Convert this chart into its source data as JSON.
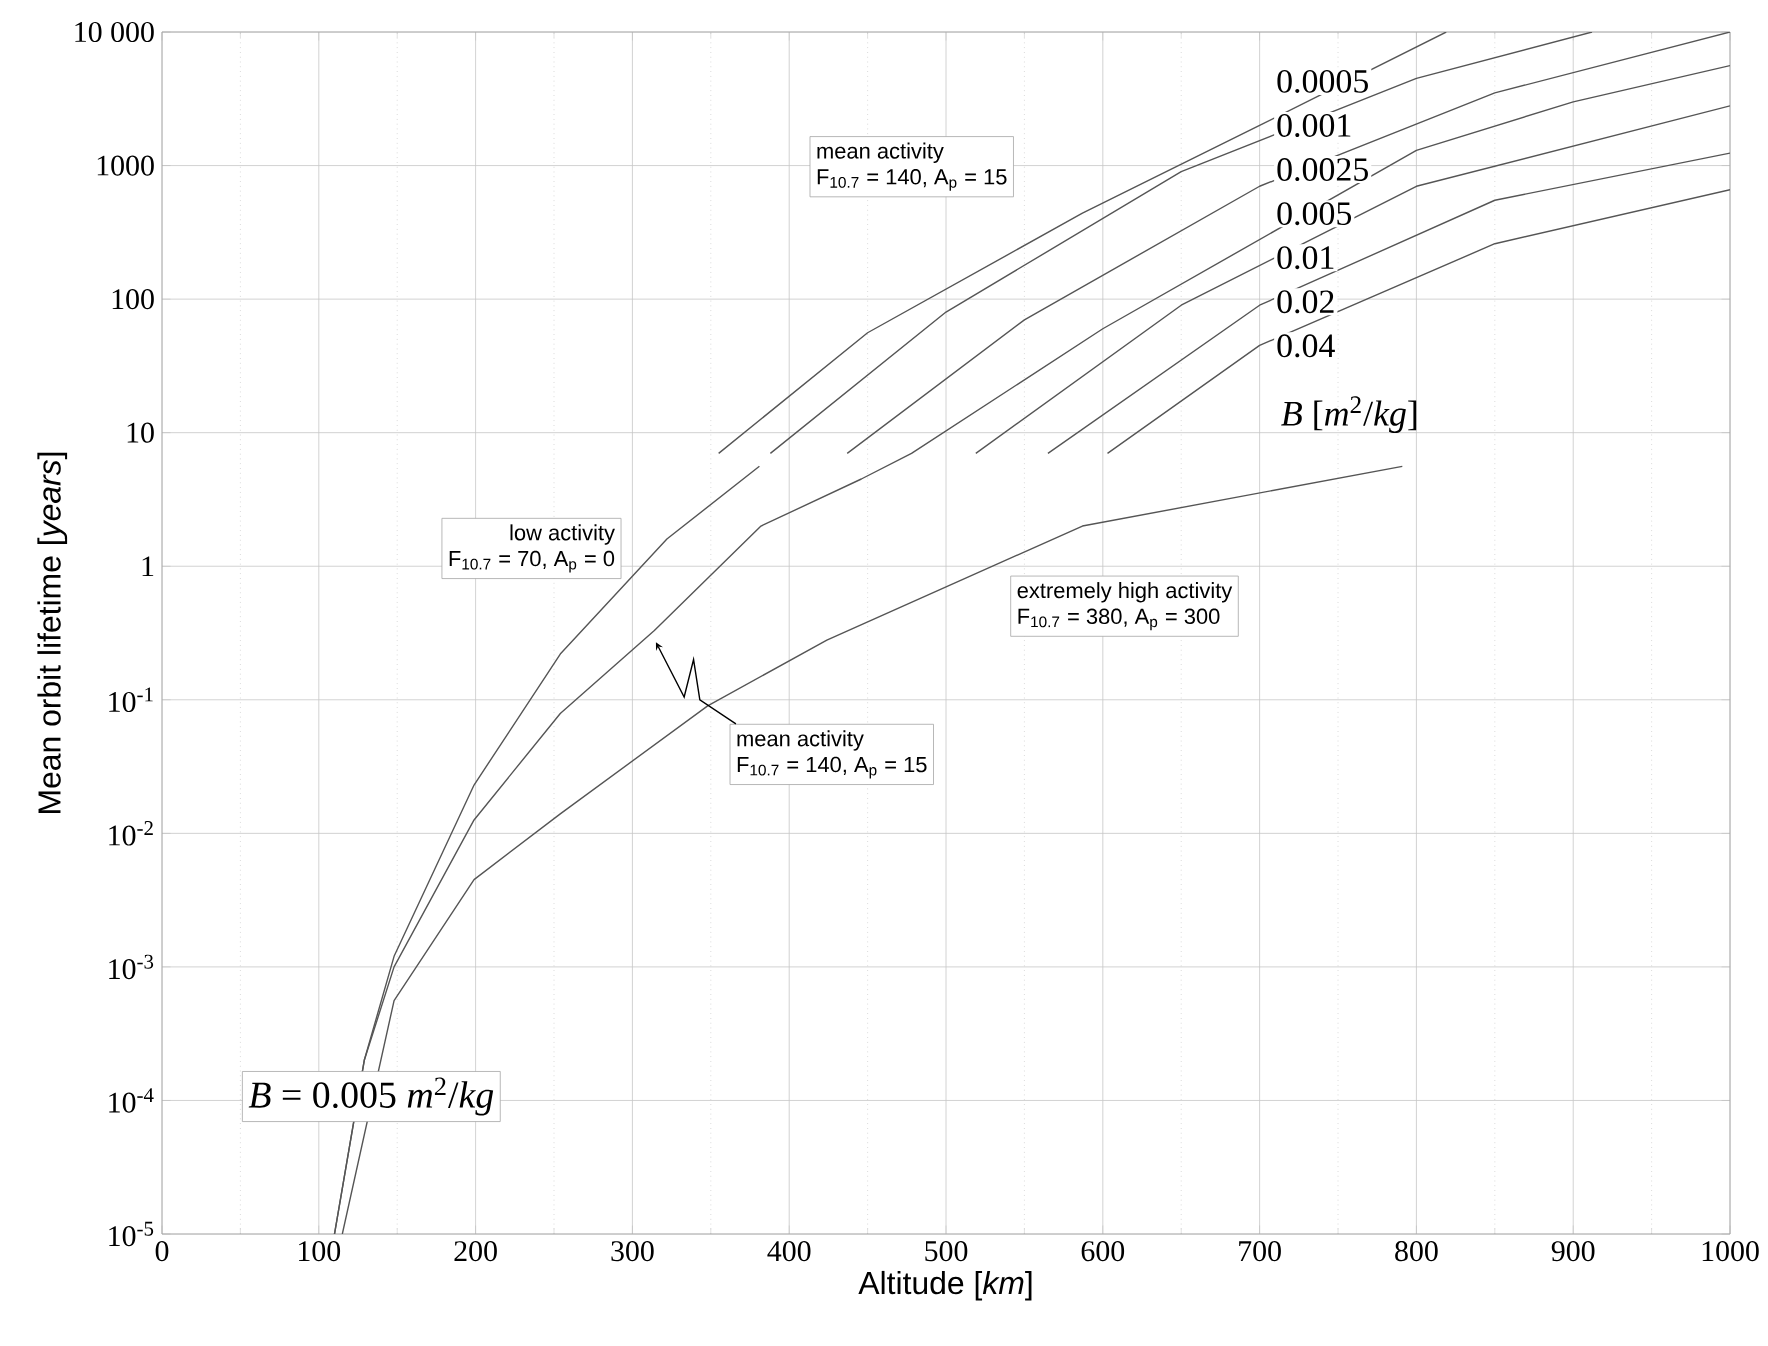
{
  "chart_data": {
    "type": "line",
    "xlabel": "Altitude [*km*]",
    "ylabel": "Mean orbit lifetime [*years*]",
    "xlim": [
      0,
      1000
    ],
    "xticks": [
      0,
      100,
      200,
      300,
      400,
      500,
      600,
      700,
      800,
      900,
      1000
    ],
    "ylim": [
      1e-05,
      10000
    ],
    "log": "y",
    "yticks": [
      {
        "value": 1e-05,
        "label": "10$^{-5}$"
      },
      {
        "value": 0.0001,
        "label": "10$^{-4}$"
      },
      {
        "value": 0.001,
        "label": "10$^{-3}$"
      },
      {
        "value": 0.01,
        "label": "10$^{-2}$"
      },
      {
        "value": 0.1,
        "label": "10$^{-1}$"
      },
      1,
      10,
      100,
      1000,
      {
        "value": 10000,
        "label": "10 000"
      }
    ],
    "grid": true,
    "series": [
      {
        "name": "0.0005",
        "color": "#555555",
        "x": [
          355,
          450,
          587,
          700,
          819
        ],
        "values": [
          7,
          56,
          440,
          2000,
          10000
        ]
      },
      {
        "name": "0.001",
        "color": "#555555",
        "x": [
          388,
          500,
          650,
          800,
          912
        ],
        "values": [
          7,
          80,
          900,
          4500,
          10000
        ]
      },
      {
        "name": "0.0025",
        "color": "#555555",
        "x": [
          437,
          550,
          700,
          850,
          1000
        ],
        "values": [
          7,
          70,
          700,
          3500,
          10000
        ]
      },
      {
        "name": "0.005",
        "color": "#555555",
        "x": [
          110,
          129,
          148,
          199,
          254,
          314,
          382,
          446,
          478,
          600,
          800,
          900,
          1000
        ],
        "values": [
          1e-05,
          0.0002,
          0.001,
          0.0126,
          0.079,
          0.33,
          2,
          4.5,
          7,
          60,
          1300,
          3000,
          5600
        ]
      },
      {
        "name": "0.01",
        "color": "#555555",
        "x": [
          519,
          650,
          800,
          1000
        ],
        "values": [
          7,
          90,
          700,
          2800
        ]
      },
      {
        "name": "0.02",
        "color": "#555555",
        "x": [
          565,
          700,
          850,
          1000
        ],
        "values": [
          7,
          90,
          550,
          1240
        ]
      },
      {
        "name": "0.04",
        "color": "#555555",
        "x": [
          603,
          700,
          850,
          1000
        ],
        "values": [
          7,
          45,
          260,
          660
        ]
      },
      {
        "color": "#555555",
        "x": [
          110,
          129,
          148,
          199,
          254,
          322,
          381
        ],
        "values": [
          1e-05,
          0.0002,
          0.0012,
          0.023,
          0.22,
          1.6,
          5.6
        ]
      },
      {
        "color": "#555555",
        "x": [
          115,
          148,
          199,
          254,
          348,
          424,
          587,
          791
        ],
        "values": [
          1e-05,
          0.00056,
          0.0045,
          0.014,
          0.09,
          0.28,
          2,
          5.6
        ]
      }
    ],
    "annotations": [
      "mean activity",
      "F$_{10.7}$ = 140, A$_{p}$ = 15",
      "low activity",
      "F$_{10.7}$ = 70, A$_{p}$ = 0",
      "extremely high activity",
      "F$_{10.7}$ = 380, A$_{p}$ = 300",
      "mean activity",
      "F$_{10.7}$ = 140, A$_{p}$ = 15",
      "*B* = 0.005 *m*$^{2}$/*kg*",
      "*B* [*m*$^{2}$/*kg*]"
    ]
  }
}
